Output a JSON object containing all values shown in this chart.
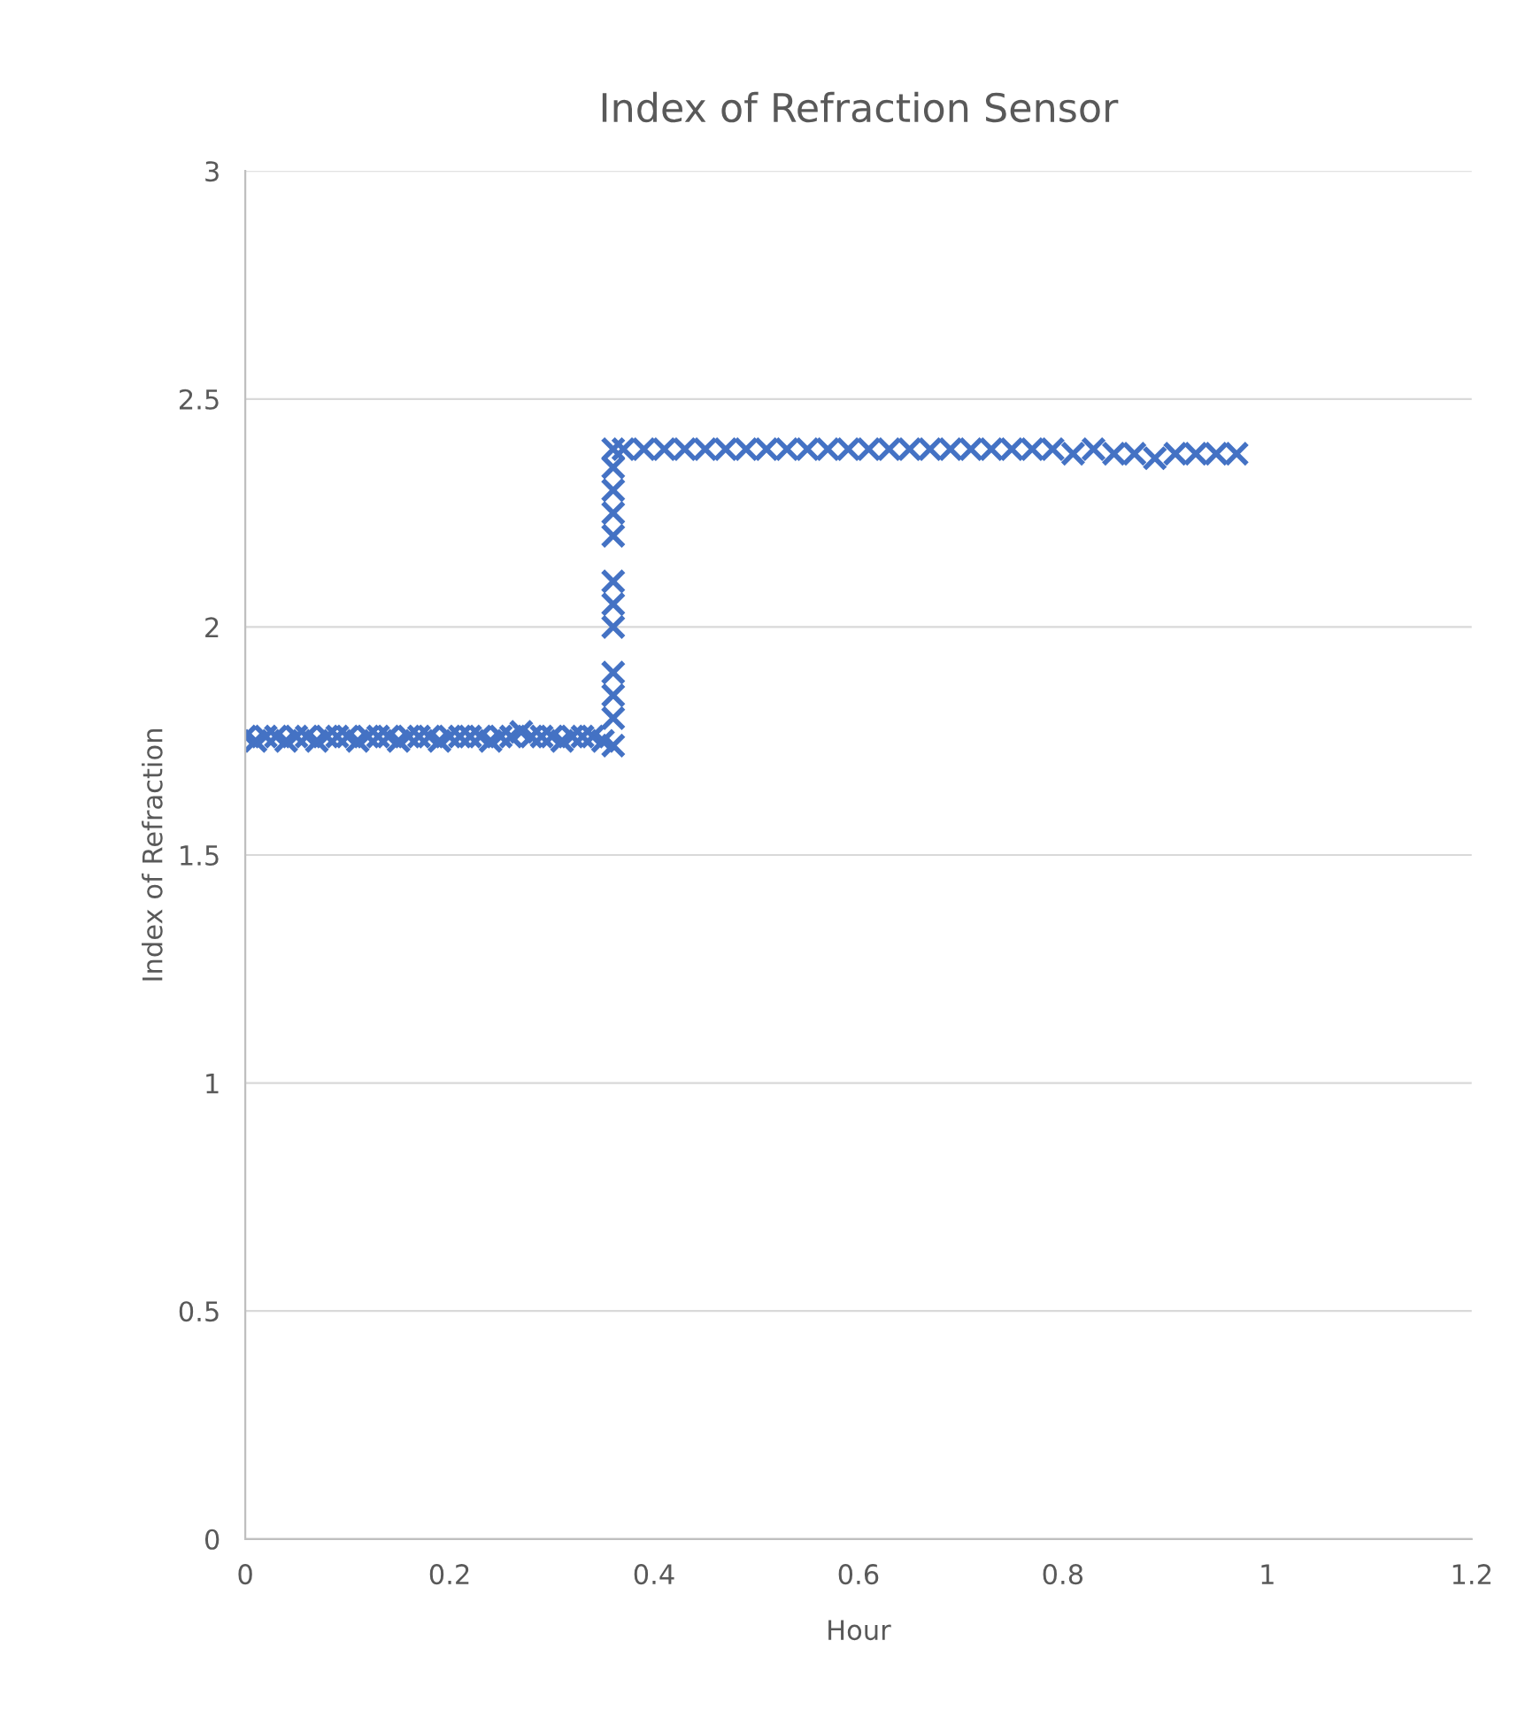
{
  "chart_data": {
    "type": "scatter",
    "title": "Index of Refraction Sensor",
    "xlabel": "Hour",
    "ylabel": "Index of Refraction",
    "xlim": [
      0,
      1.2
    ],
    "xticks": [
      0,
      0.2,
      0.4,
      0.6,
      0.8,
      1,
      1.2
    ],
    "ylim": [
      0,
      3
    ],
    "yticks": [
      0,
      0.5,
      1,
      1.5,
      2,
      2.5,
      3
    ],
    "grid": "y",
    "marker": "cross",
    "series": [
      {
        "color": "#4472c4",
        "x": [
          0,
          0.01,
          0.02,
          0.03,
          0.04,
          0.05,
          0.06,
          0.07,
          0.08,
          0.09,
          0.1,
          0.11,
          0.12,
          0.13,
          0.14,
          0.15,
          0.16,
          0.17,
          0.18,
          0.19,
          0.2,
          0.21,
          0.22,
          0.23,
          0.24,
          0.25,
          0.26,
          0.27,
          0.28,
          0.29,
          0.3,
          0.31,
          0.32,
          0.33,
          0.34,
          0.35,
          0.36,
          0.36,
          0.36,
          0.36,
          0.36,
          0.36,
          0.36,
          0.36,
          0.36,
          0.36,
          0.36,
          0.36,
          0.37,
          0.39,
          0.41,
          0.43,
          0.45,
          0.47,
          0.49,
          0.51,
          0.53,
          0.55,
          0.57,
          0.59,
          0.61,
          0.63,
          0.65,
          0.67,
          0.69,
          0.71,
          0.73,
          0.75,
          0.77,
          0.79,
          0.81,
          0.83,
          0.85,
          0.87,
          0.89,
          0.91,
          0.93,
          0.95,
          0.97
        ],
        "values": [
          1.76,
          1.75,
          1.76,
          1.76,
          1.75,
          1.76,
          1.76,
          1.75,
          1.76,
          1.76,
          1.76,
          1.75,
          1.76,
          1.76,
          1.76,
          1.75,
          1.76,
          1.76,
          1.76,
          1.75,
          1.76,
          1.76,
          1.76,
          1.76,
          1.75,
          1.76,
          1.76,
          1.77,
          1.76,
          1.76,
          1.76,
          1.75,
          1.76,
          1.76,
          1.76,
          1.75,
          1.74,
          1.8,
          1.85,
          1.9,
          2.0,
          2.05,
          2.1,
          2.2,
          2.25,
          2.3,
          2.35,
          2.39,
          2.39,
          2.39,
          2.39,
          2.39,
          2.39,
          2.39,
          2.39,
          2.39,
          2.39,
          2.39,
          2.39,
          2.39,
          2.39,
          2.39,
          2.39,
          2.39,
          2.39,
          2.39,
          2.39,
          2.39,
          2.39,
          2.39,
          2.38,
          2.39,
          2.38,
          2.38,
          2.37,
          2.38,
          2.38,
          2.38,
          2.38
        ]
      }
    ]
  }
}
